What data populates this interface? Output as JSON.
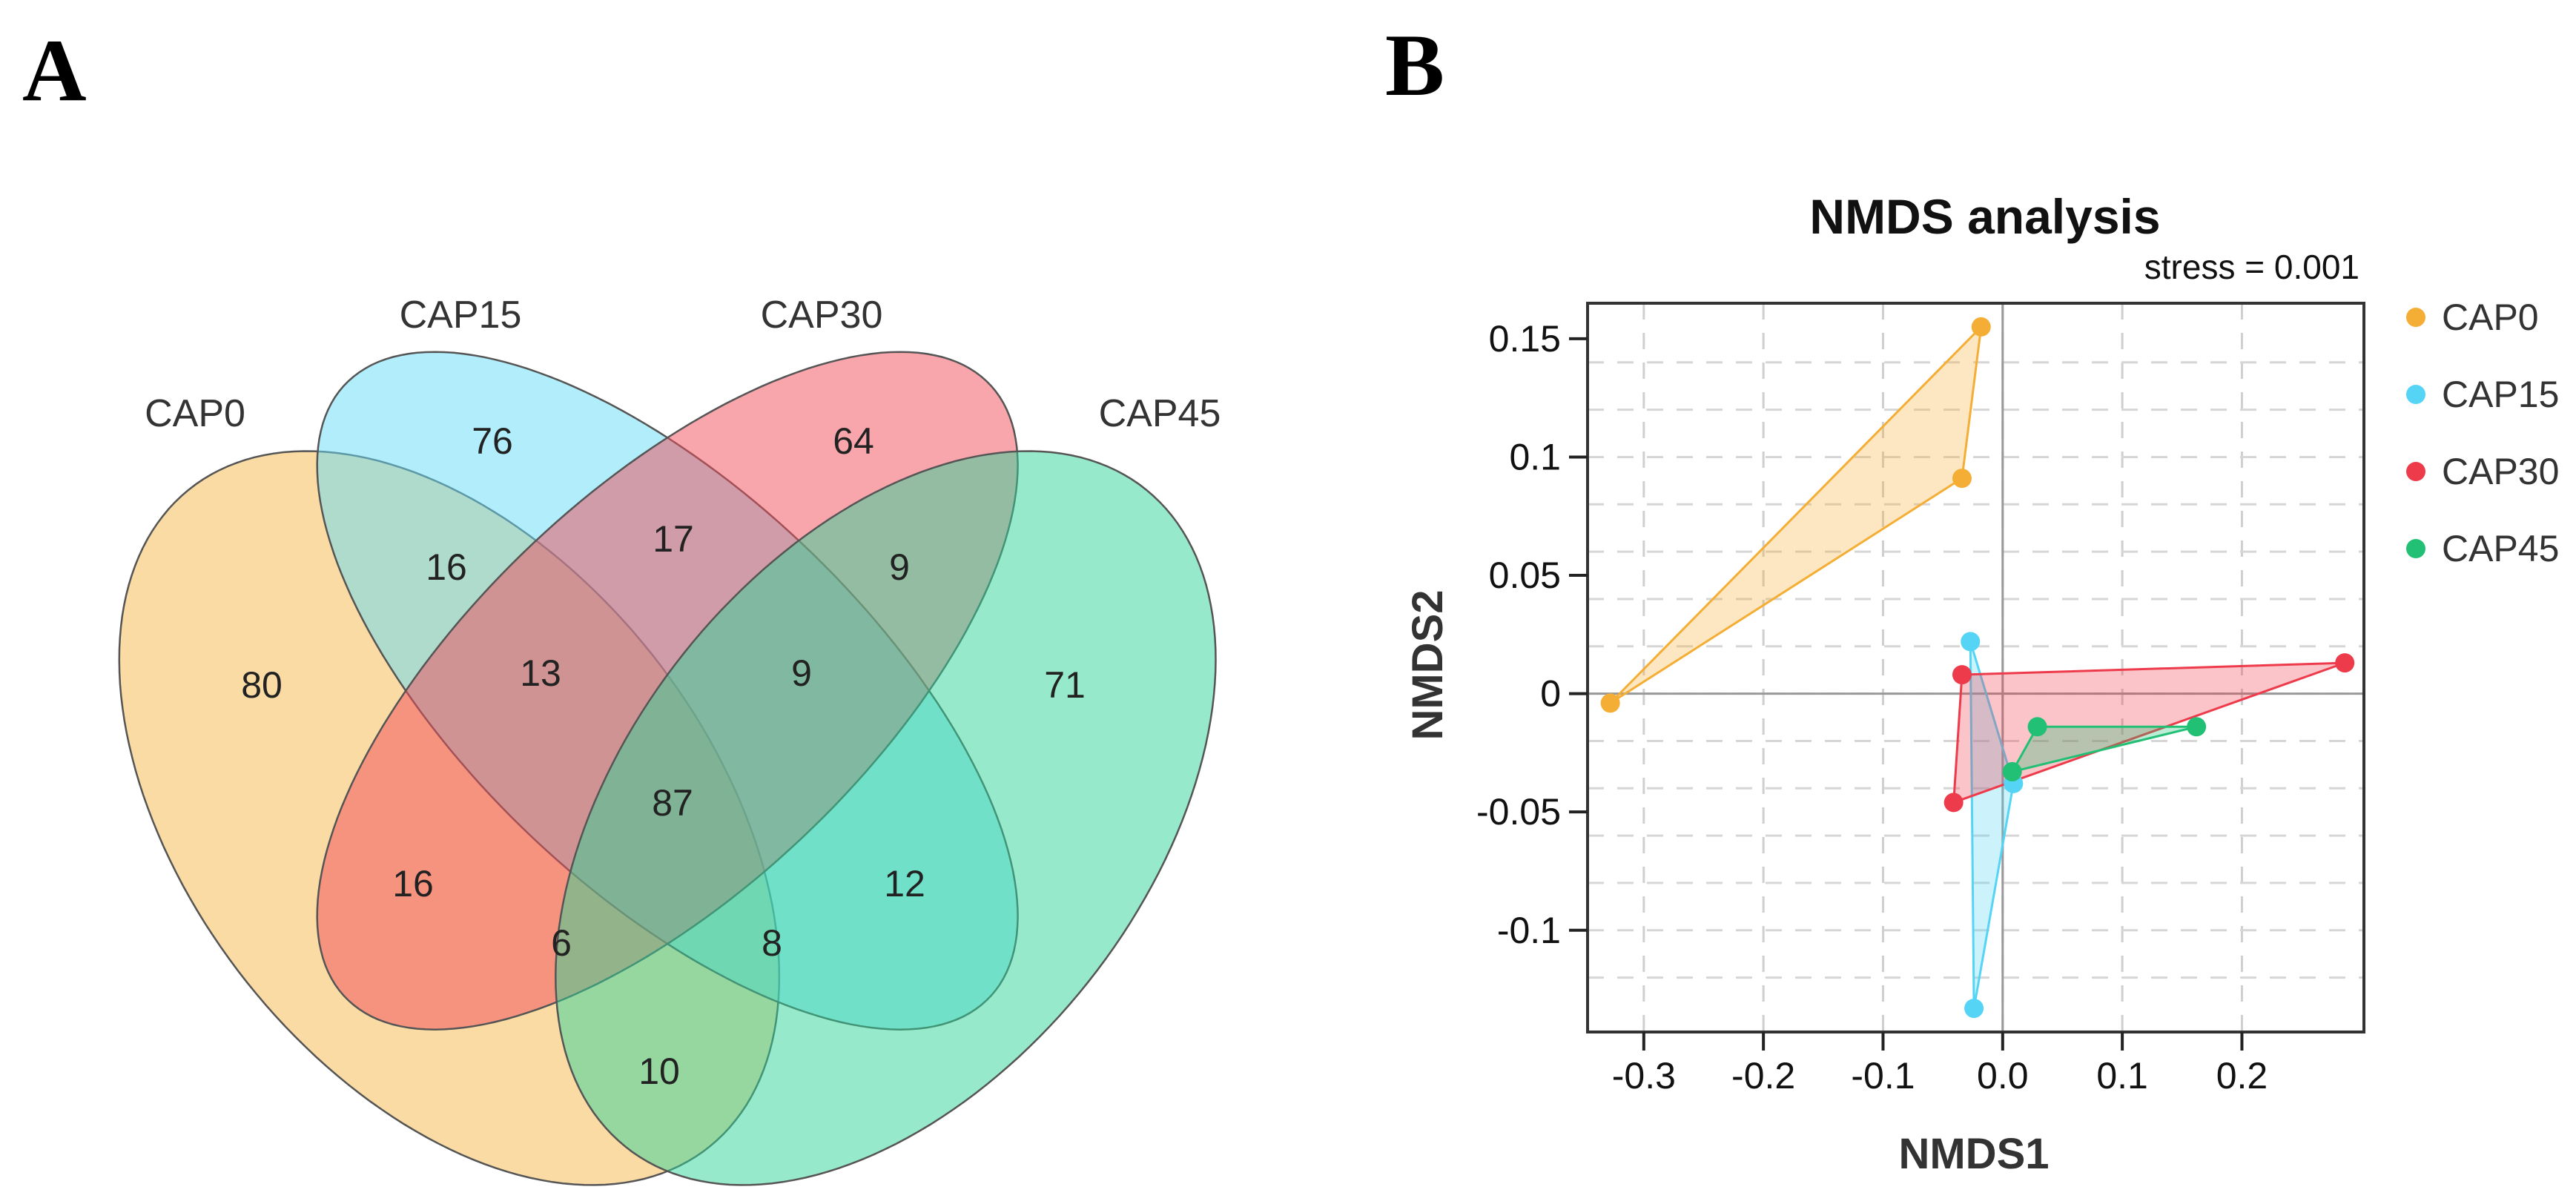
{
  "panels": {
    "a_label": "A",
    "b_label": "B"
  },
  "venn": {
    "sets": [
      {
        "name": "CAP0",
        "color": "#F6B74A"
      },
      {
        "name": "CAP15",
        "color": "#63DCF6"
      },
      {
        "name": "CAP30",
        "color": "#F24B5A"
      },
      {
        "name": "CAP45",
        "color": "#2FD397"
      }
    ],
    "regions": {
      "CAP15_only": "76",
      "CAP30_only": "64",
      "CAP0_CAP15": "16",
      "CAP15_CAP30": "17",
      "CAP30_CAP45": "9",
      "CAP0_only": "80",
      "CAP0_CAP15_CAP30": "13",
      "CAP15_CAP30_CAP45": "9",
      "CAP45_only": "71",
      "all": "87",
      "CAP0_CAP30": "16",
      "CAP15_CAP45": "12",
      "CAP0_CAP30_CAP45": "6",
      "CAP0_CAP15_CAP45": "8",
      "CAP0_CAP45": "10"
    }
  },
  "chart_data": {
    "type": "scatter",
    "title": "NMDS analysis",
    "subtitle": "stress = 0.001",
    "xlabel": "NMDS1",
    "ylabel": "NMDS2",
    "xlim": [
      -0.347,
      0.302
    ],
    "ylim": [
      -0.143,
      0.165
    ],
    "xticks": [
      -0.3,
      -0.2,
      -0.1,
      0.0,
      0.1,
      0.2
    ],
    "xtick_labels": [
      "-0.3",
      "-0.2",
      "-0.1",
      "0.0",
      "0.1",
      "0.2"
    ],
    "yticks": [
      -0.1,
      -0.05,
      0,
      0.05,
      0.1,
      0.15
    ],
    "ytick_labels": [
      "-0.1",
      "-0.05",
      "0",
      "0.05",
      "0.1",
      "0.15"
    ],
    "grid": true,
    "legend_position": "right",
    "series": [
      {
        "name": "CAP0",
        "color": "#F5AE35",
        "points": [
          [
            -0.018,
            0.155
          ],
          [
            -0.034,
            0.091
          ],
          [
            -0.328,
            -0.004
          ]
        ]
      },
      {
        "name": "CAP15",
        "color": "#55D4F5",
        "points": [
          [
            -0.027,
            0.022
          ],
          [
            0.009,
            -0.038
          ],
          [
            -0.024,
            -0.133
          ]
        ]
      },
      {
        "name": "CAP30",
        "color": "#EE3B4B",
        "points": [
          [
            -0.034,
            0.008
          ],
          [
            -0.041,
            -0.046
          ],
          [
            0.286,
            0.013
          ]
        ]
      },
      {
        "name": "CAP45",
        "color": "#22C074",
        "points": [
          [
            0.029,
            -0.014
          ],
          [
            0.162,
            -0.014
          ],
          [
            0.008,
            -0.033
          ]
        ]
      }
    ]
  }
}
